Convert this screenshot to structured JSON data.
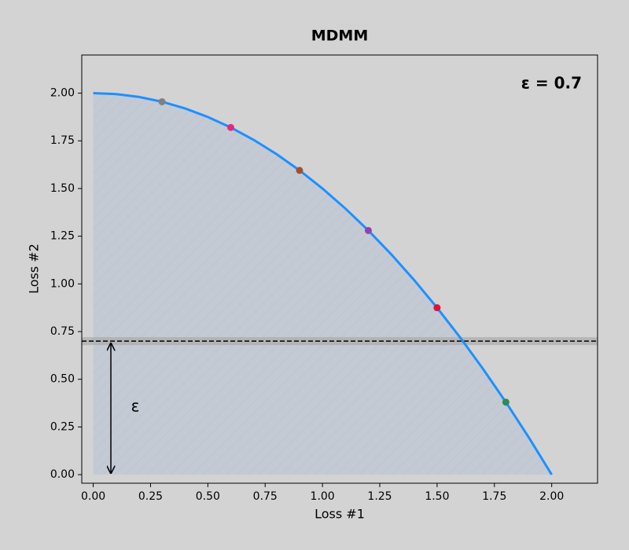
{
  "chart_data": {
    "type": "frontier",
    "title": "MDMM",
    "x_label": "Loss #1",
    "y_label": "Loss #2",
    "annotation": "ε = 0.7",
    "epsilon_label": "ε",
    "epsilon": 0.7,
    "xlim": [
      -0.05,
      2.2
    ],
    "ylim": [
      -0.045,
      2.2
    ],
    "xticks": [
      {
        "value": 0,
        "label": "0.00"
      },
      {
        "value": 0.25,
        "label": "0.25"
      },
      {
        "value": 0.5,
        "label": "0.50"
      },
      {
        "value": 0.75,
        "label": "0.75"
      },
      {
        "value": 1,
        "label": "1.00"
      },
      {
        "value": 1.25,
        "label": "1.25"
      },
      {
        "value": 1.5,
        "label": "1.50"
      },
      {
        "value": 1.75,
        "label": "1.75"
      },
      {
        "value": 2,
        "label": "2.00"
      }
    ],
    "yticks": [
      {
        "value": 0,
        "label": "0.00"
      },
      {
        "value": 0.25,
        "label": "0.25"
      },
      {
        "value": 0.5,
        "label": "0.50"
      },
      {
        "value": 0.75,
        "label": "0.75"
      },
      {
        "value": 1,
        "label": "1.00"
      },
      {
        "value": 1.25,
        "label": "1.25"
      },
      {
        "value": 1.5,
        "label": "1.50"
      },
      {
        "value": 1.75,
        "label": "1.75"
      },
      {
        "value": 2,
        "label": "2.00"
      }
    ],
    "curve": {
      "color": "#1e90ff",
      "x": [
        0,
        0.1,
        0.2,
        0.3,
        0.4,
        0.5,
        0.6,
        0.7,
        0.8,
        0.9,
        1.0,
        1.1,
        1.2,
        1.3,
        1.4,
        1.5,
        1.6,
        1.7,
        1.8,
        1.9,
        2.0
      ],
      "y": [
        2,
        1.995,
        1.98,
        1.955,
        1.92,
        1.875,
        1.82,
        1.755,
        1.68,
        1.595,
        1.5,
        1.395,
        1.28,
        1.155,
        1.02,
        0.875,
        0.72,
        0.555,
        0.38,
        0.195,
        0
      ]
    },
    "points": {
      "x": [
        0.3,
        0.6,
        0.9,
        1.2,
        1.5,
        1.8
      ],
      "y": [
        1.955,
        1.82,
        1.595,
        1.28,
        0.875,
        0.38
      ],
      "colors": [
        "#808080",
        "#e6287d",
        "#a0522d",
        "#8e44ad",
        "#dc143c",
        "#2e8b57"
      ]
    }
  }
}
